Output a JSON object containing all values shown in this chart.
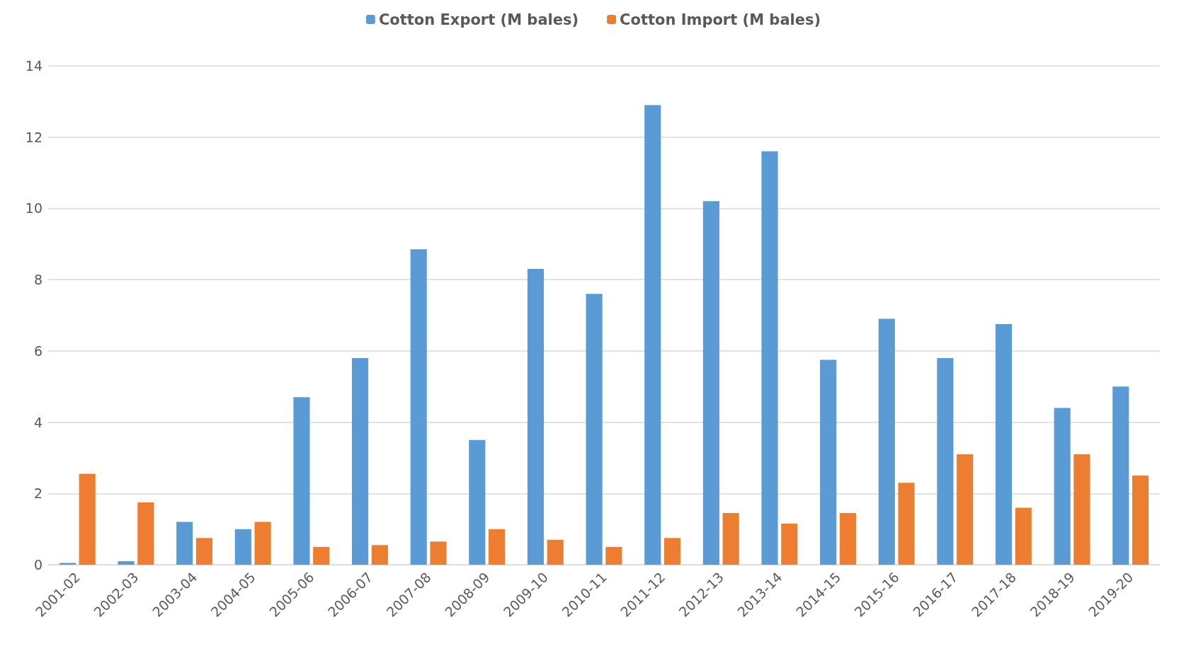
{
  "chart_data": {
    "type": "bar",
    "categories": [
      "2001-02",
      "2002-03",
      "2003-04",
      "2004-05",
      "2005-06",
      "2006-07",
      "2007-08",
      "2008-09",
      "2009-10",
      "2010-11",
      "2011-12",
      "2012-13",
      "2013-14",
      "2014-15",
      "2015-16",
      "2016-17",
      "2017-18",
      "2018-19",
      "2019-20"
    ],
    "series": [
      {
        "name": "Cotton Export (M bales)",
        "color": "#5b9bd5",
        "values": [
          0.05,
          0.1,
          1.2,
          1.0,
          4.7,
          5.8,
          8.85,
          3.5,
          8.3,
          7.6,
          12.9,
          10.2,
          11.6,
          5.75,
          6.9,
          5.8,
          6.75,
          4.4,
          5.0
        ]
      },
      {
        "name": "Cotton Import (M bales)",
        "color": "#ed7d31",
        "values": [
          2.55,
          1.75,
          0.75,
          1.2,
          0.5,
          0.55,
          0.65,
          1.0,
          0.7,
          0.5,
          0.75,
          1.45,
          1.15,
          1.45,
          2.3,
          3.1,
          1.6,
          3.1,
          2.5
        ]
      }
    ],
    "ylim": [
      0,
      14
    ],
    "yticks": [
      0,
      2,
      4,
      6,
      8,
      10,
      12,
      14
    ],
    "grid": "y",
    "legend": "top"
  }
}
